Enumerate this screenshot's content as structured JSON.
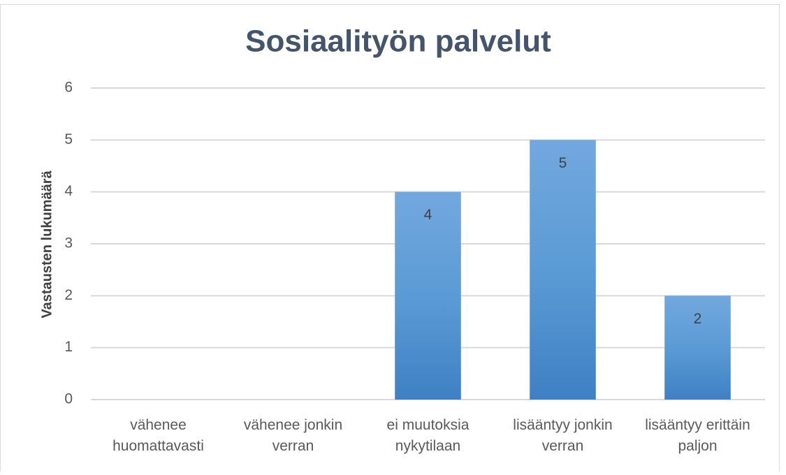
{
  "chart_data": {
    "type": "bar",
    "title": "Sosiaalityön palvelut",
    "y_axis_label": "Vastausten lukumäärä",
    "categories": [
      "vähenee huomattavasti",
      "vähenee jonkin verran",
      "ei muutoksia nykytilaan",
      "lisääntyy jonkin verran",
      "lisääntyy erittäin paljon"
    ],
    "values": [
      0,
      0,
      4,
      5,
      2
    ],
    "color": "#5b9bd5",
    "ylim": [
      0,
      6
    ],
    "yticks": [
      0,
      1,
      2,
      3,
      4,
      5,
      6
    ],
    "grid": true
  }
}
